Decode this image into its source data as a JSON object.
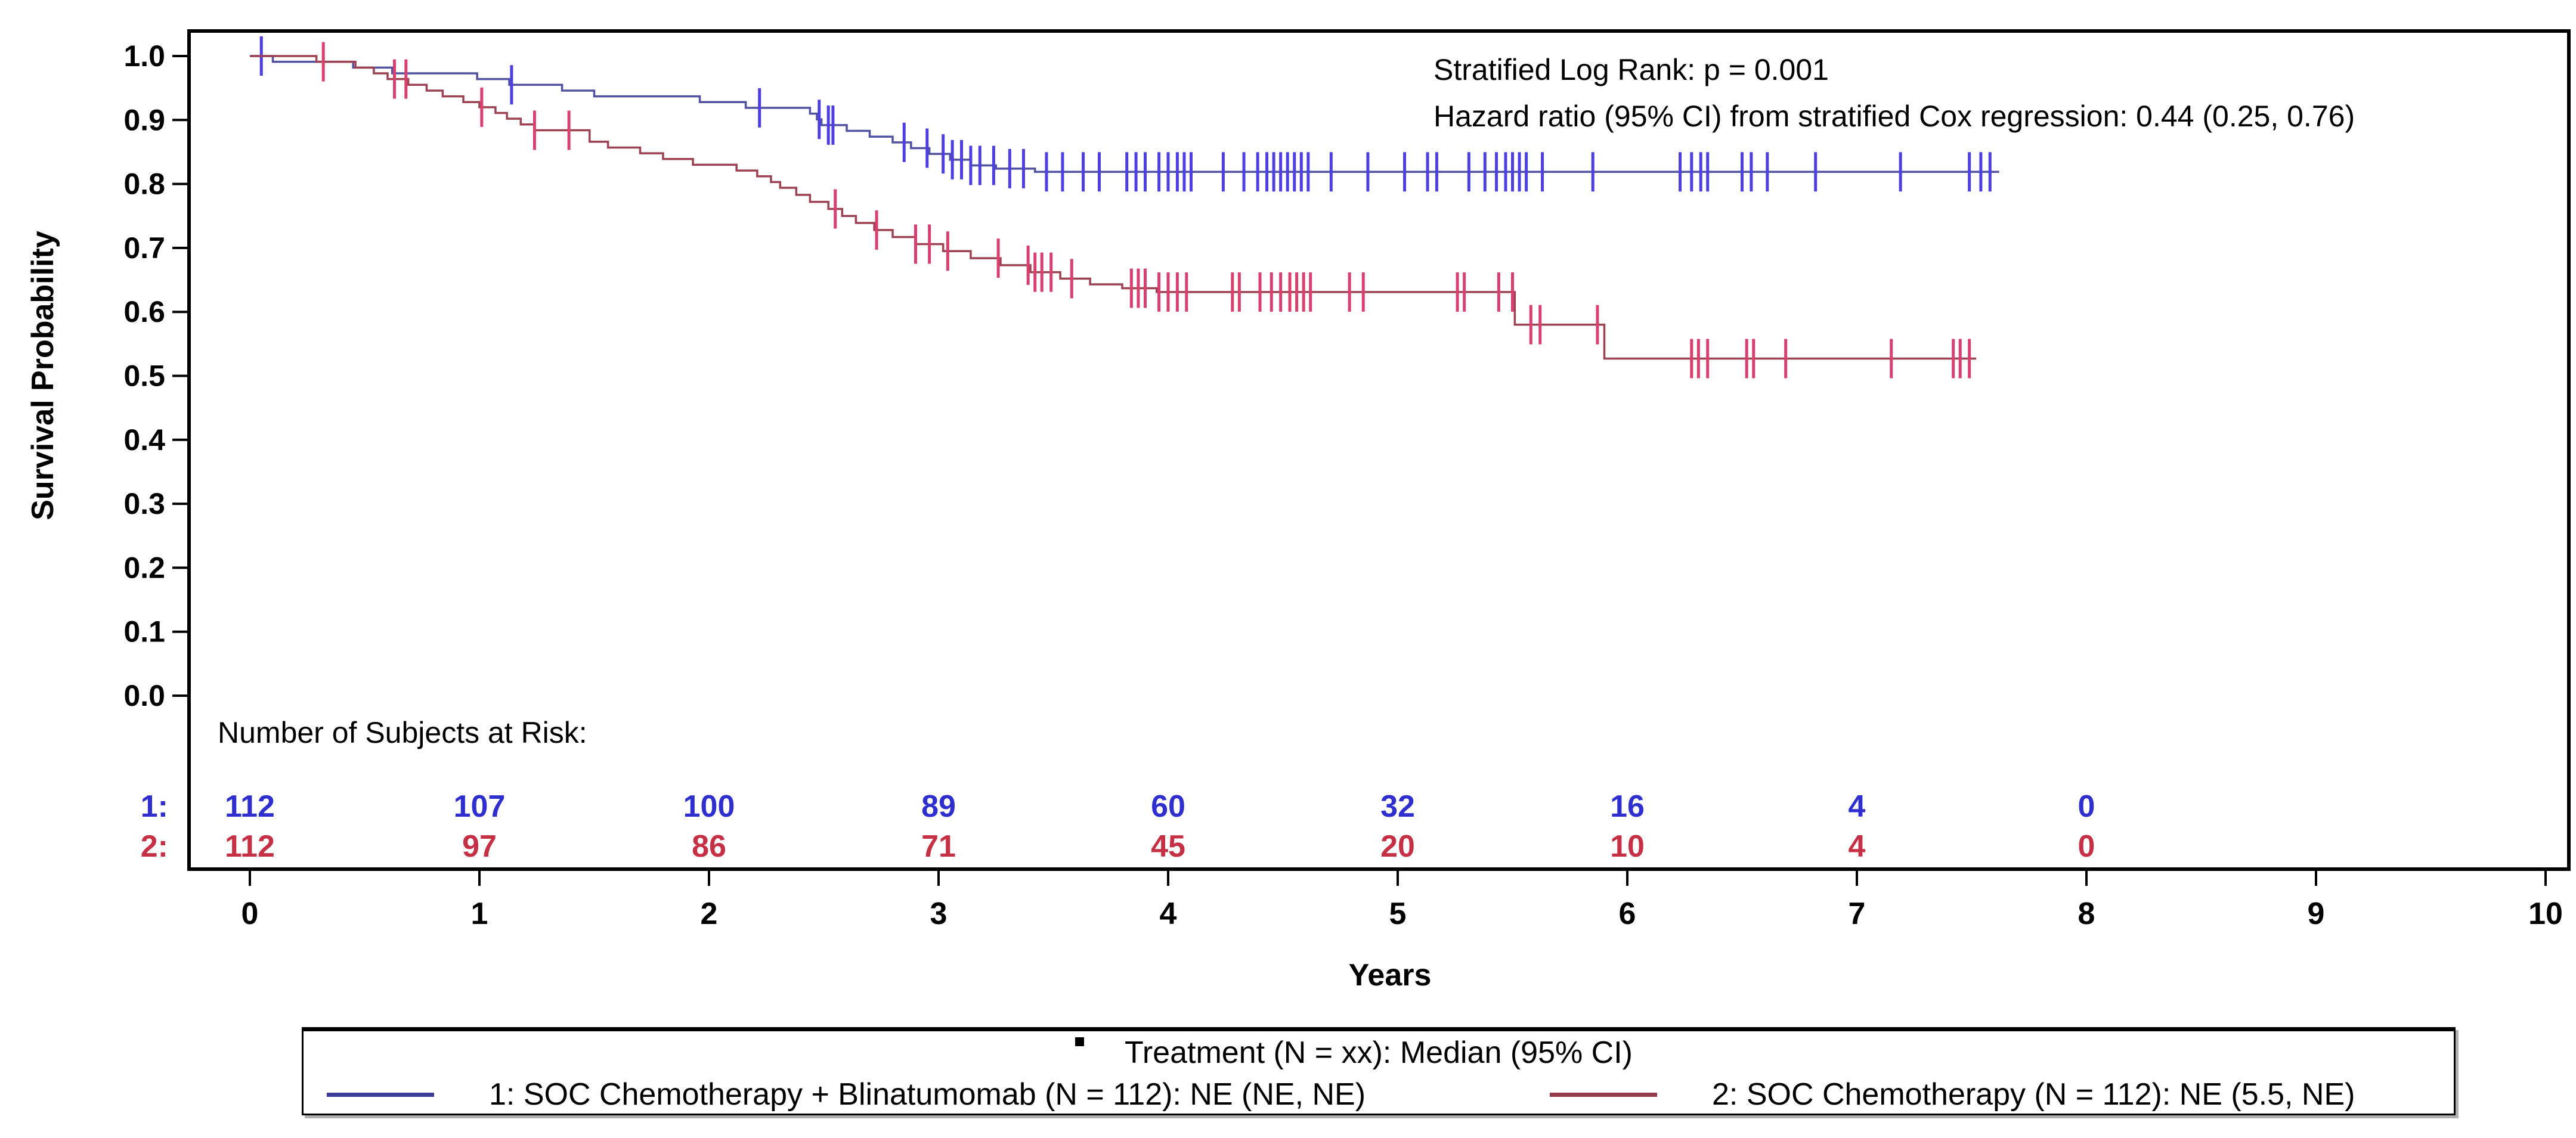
{
  "figure": {
    "y_axis_title": "Survival Probability",
    "x_axis_title": "Years",
    "annotations": {
      "line1": "Stratified Log Rank: p = 0.001",
      "line2": "Hazard ratio (95% CI) from stratified Cox regression: 0.44 (0.25, 0.76)"
    },
    "risk_table": {
      "header": "Number of Subjects at Risk:",
      "rows": [
        {
          "label": "1:",
          "color": "#2f2fd0"
        },
        {
          "label": "2:",
          "color": "#c63045"
        }
      ]
    },
    "legend": {
      "title": "Treatment (N = xx): Median (95% CI)",
      "items": [
        {
          "label": "1: SOC Chemotherapy + Blinatumomab (N = 112): NE (NE, NE)",
          "color": "#3d3d99"
        },
        {
          "label": "2: SOC Chemotherapy (N = 112): NE (5.5, NE)",
          "color": "#953c4c"
        }
      ]
    }
  },
  "chart_data": {
    "type": "line",
    "subtype": "kaplan-meier-step-curves-with-censor-ticks",
    "title": "",
    "xlabel": "Years",
    "ylabel": "Survival Probability",
    "xlim": [
      0,
      10
    ],
    "ylim": [
      0.0,
      1.0
    ],
    "grid": false,
    "legend_position": "bottom",
    "x_ticks": [
      0,
      1,
      2,
      3,
      4,
      5,
      6,
      7,
      8,
      9,
      10
    ],
    "y_ticks": [
      1.0,
      0.9,
      0.8,
      0.7,
      0.6,
      0.5,
      0.4,
      0.3,
      0.2,
      0.1,
      0.0
    ],
    "stats": {
      "stratified_log_rank_p": "0.001",
      "hazard_ratio": "0.44",
      "hazard_ratio_95_ci": "(0.25, 0.76)"
    },
    "series": [
      {
        "name": "1: SOC Chemotherapy + Blinatumomab",
        "n": 112,
        "median_95_ci": "NE (NE, NE)",
        "line_color": "#5152a2",
        "censor_color": "#4d3fe0",
        "end_x": 7.62,
        "steps": [
          [
            0.0,
            1.0
          ],
          [
            0.1,
            0.991
          ],
          [
            0.45,
            0.982
          ],
          [
            0.62,
            0.973
          ],
          [
            0.99,
            0.964
          ],
          [
            1.13,
            0.955
          ],
          [
            1.36,
            0.946
          ],
          [
            1.5,
            0.937
          ],
          [
            1.96,
            0.928
          ],
          [
            2.16,
            0.919
          ],
          [
            2.44,
            0.91
          ],
          [
            2.47,
            0.901
          ],
          [
            2.49,
            0.892
          ],
          [
            2.6,
            0.883
          ],
          [
            2.7,
            0.874
          ],
          [
            2.8,
            0.865
          ],
          [
            2.88,
            0.856
          ],
          [
            2.96,
            0.847
          ],
          [
            3.05,
            0.838
          ],
          [
            3.14,
            0.829
          ],
          [
            3.25,
            0.824
          ],
          [
            3.42,
            0.819
          ]
        ],
        "censors_x": [
          0.05,
          1.14,
          2.22,
          2.48,
          2.52,
          2.54,
          2.85,
          2.95,
          3.02,
          3.06,
          3.1,
          3.14,
          3.18,
          3.24,
          3.31,
          3.37,
          3.47,
          3.54,
          3.63,
          3.7,
          3.82,
          3.86,
          3.9,
          3.96,
          4.0,
          4.04,
          4.07,
          4.1,
          4.24,
          4.33,
          4.39,
          4.43,
          4.46,
          4.49,
          4.52,
          4.55,
          4.58,
          4.61,
          4.71,
          4.87,
          5.03,
          5.13,
          5.17,
          5.31,
          5.38,
          5.43,
          5.47,
          5.5,
          5.53,
          5.56,
          5.63,
          5.85,
          6.23,
          6.28,
          6.32,
          6.35,
          6.5,
          6.54,
          6.61,
          6.82,
          7.19,
          7.49,
          7.54,
          7.58
        ]
      },
      {
        "name": "2: SOC Chemotherapy",
        "n": 112,
        "median_95_ci": "NE (5.5, NE)",
        "line_color": "#9d4253",
        "censor_color": "#d84070",
        "end_x": 7.52,
        "steps": [
          [
            0.0,
            1.0
          ],
          [
            0.29,
            0.991
          ],
          [
            0.46,
            0.982
          ],
          [
            0.54,
            0.973
          ],
          [
            0.6,
            0.964
          ],
          [
            0.69,
            0.955
          ],
          [
            0.77,
            0.946
          ],
          [
            0.84,
            0.937
          ],
          [
            0.93,
            0.928
          ],
          [
            1.0,
            0.92
          ],
          [
            1.07,
            0.911
          ],
          [
            1.12,
            0.902
          ],
          [
            1.18,
            0.893
          ],
          [
            1.24,
            0.884
          ],
          [
            1.48,
            0.866
          ],
          [
            1.56,
            0.857
          ],
          [
            1.7,
            0.848
          ],
          [
            1.8,
            0.839
          ],
          [
            1.93,
            0.83
          ],
          [
            2.12,
            0.821
          ],
          [
            2.21,
            0.812
          ],
          [
            2.27,
            0.803
          ],
          [
            2.31,
            0.794
          ],
          [
            2.38,
            0.783
          ],
          [
            2.44,
            0.772
          ],
          [
            2.52,
            0.761
          ],
          [
            2.58,
            0.75
          ],
          [
            2.64,
            0.739
          ],
          [
            2.72,
            0.728
          ],
          [
            2.8,
            0.717
          ],
          [
            2.9,
            0.706
          ],
          [
            3.02,
            0.695
          ],
          [
            3.14,
            0.684
          ],
          [
            3.27,
            0.673
          ],
          [
            3.4,
            0.662
          ],
          [
            3.53,
            0.652
          ],
          [
            3.66,
            0.643
          ],
          [
            3.8,
            0.637
          ],
          [
            3.95,
            0.631
          ],
          [
            5.51,
            0.58
          ],
          [
            5.9,
            0.527
          ]
        ],
        "censors_x": [
          0.32,
          0.63,
          0.68,
          1.01,
          1.24,
          1.39,
          2.55,
          2.73,
          2.9,
          2.96,
          3.04,
          3.26,
          3.39,
          3.42,
          3.45,
          3.49,
          3.58,
          3.84,
          3.87,
          3.9,
          3.96,
          4.0,
          4.04,
          4.08,
          4.28,
          4.31,
          4.4,
          4.45,
          4.49,
          4.53,
          4.56,
          4.59,
          4.62,
          4.79,
          4.85,
          5.26,
          5.29,
          5.44,
          5.5,
          5.58,
          5.62,
          5.87,
          6.28,
          6.31,
          6.35,
          6.52,
          6.55,
          6.69,
          7.15,
          7.42,
          7.45,
          7.49
        ]
      }
    ],
    "at_risk": {
      "years": [
        0,
        1,
        2,
        3,
        4,
        5,
        6,
        7,
        8
      ],
      "rows": [
        {
          "label": "1:",
          "counts": [
            112,
            107,
            100,
            89,
            60,
            32,
            16,
            4,
            0
          ]
        },
        {
          "label": "2:",
          "counts": [
            112,
            97,
            86,
            71,
            45,
            20,
            10,
            4,
            0
          ]
        }
      ]
    }
  }
}
